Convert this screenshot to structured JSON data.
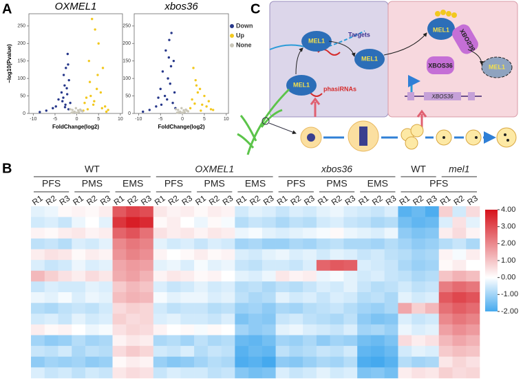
{
  "panels": [
    "A",
    "B",
    "C"
  ],
  "diagram": {
    "mel1": "MEL1",
    "targets": "Targets",
    "phasirnas": "phasiRNAs",
    "xbos36_protein": "XBOS36",
    "xbos36_gene": "XBOS36"
  },
  "chart_data": [
    {
      "type": "scatter",
      "title": "OXMEL1",
      "xlabel": "FoldChange(log2)",
      "ylabel": "−log10(Pvalue)",
      "xlim": [
        -11,
        10.5
      ],
      "ylim": [
        0,
        285
      ],
      "xticks": [
        -10,
        -5,
        0,
        5,
        10
      ],
      "yticks": [
        0,
        50,
        100,
        150,
        200,
        250
      ],
      "series": [
        {
          "name": "Down",
          "color": "#26378a",
          "x": [
            -2.1,
            -2.5,
            -3.0,
            -1.8,
            -2.8,
            -3.5,
            -4.2,
            -2.2,
            -1.5,
            -3.1,
            -2.6,
            -5.5,
            -7.0,
            -8.5,
            -4.8,
            -2.3,
            -1.9,
            -3.3,
            -2.0,
            -2.7
          ],
          "values": [
            170,
            130,
            110,
            95,
            80,
            60,
            40,
            55,
            30,
            45,
            25,
            15,
            8,
            4,
            20,
            72,
            12,
            35,
            140,
            18
          ]
        },
        {
          "name": "Up",
          "color": "#f2c81e",
          "x": [
            3.5,
            4.2,
            5.0,
            2.8,
            6.0,
            3.0,
            4.6,
            5.5,
            2.2,
            1.8,
            3.8,
            6.5,
            7.2,
            2.5,
            4.0,
            5.8,
            1.5,
            3.2,
            6.8,
            4.8
          ],
          "values": [
            270,
            240,
            200,
            150,
            130,
            90,
            70,
            60,
            45,
            30,
            25,
            20,
            10,
            12,
            35,
            15,
            8,
            50,
            5,
            110
          ]
        },
        {
          "name": "None",
          "color": "#c9c6b8",
          "x": [
            -1.0,
            -0.5,
            0,
            0.5,
            1.0,
            -1.5,
            1.3,
            -0.8,
            0.3,
            -0.2,
            0.8,
            -1.2
          ],
          "values": [
            10,
            5,
            2,
            4,
            8,
            12,
            6,
            3,
            9,
            15,
            11,
            2
          ]
        }
      ]
    },
    {
      "type": "scatter",
      "title": "xbos36",
      "xlabel": "FoldChange(log2)",
      "xlim": [
        -11,
        10.5
      ],
      "ylim": [
        0,
        285
      ],
      "xticks": [
        -10,
        -5,
        0,
        5,
        10
      ],
      "yticks": [
        0,
        50,
        100,
        150,
        200,
        250
      ],
      "series": [
        {
          "color": "#26378a",
          "x": [
            -2.5,
            -3.0,
            -3.8,
            -2.0,
            -4.5,
            -3.3,
            -2.8,
            -5.0,
            -1.8,
            -4.0,
            -3.5,
            -2.2,
            -6.0,
            -7.5,
            -9.0,
            -2.6,
            -3.1,
            -4.8,
            -1.6,
            -5.5
          ],
          "values": [
            230,
            210,
            180,
            150,
            120,
            100,
            85,
            70,
            60,
            50,
            40,
            30,
            20,
            10,
            5,
            135,
            160,
            25,
            15,
            45
          ]
        },
        {
          "color": "#f2c81e",
          "x": [
            2.5,
            3.0,
            4.0,
            5.0,
            6.0,
            3.5,
            2.2,
            4.5,
            5.5,
            7.0,
            1.8,
            3.2,
            2.8,
            6.5,
            4.2
          ],
          "values": [
            130,
            95,
            70,
            50,
            35,
            60,
            40,
            25,
            20,
            10,
            15,
            80,
            28,
            12,
            8
          ]
        },
        {
          "color": "#c9c6b8",
          "x": [
            -1.0,
            -0.5,
            0,
            0.5,
            1.0,
            -1.5,
            1.3,
            -0.8,
            0.3,
            -0.2,
            0.8,
            -1.2
          ],
          "values": [
            10,
            5,
            2,
            4,
            8,
            12,
            6,
            3,
            9,
            15,
            11,
            2
          ]
        }
      ]
    },
    {
      "type": "heatmap",
      "replicates": [
        "R1",
        "R2",
        "R3"
      ],
      "groups": [
        {
          "genotypes": [
            {
              "name": "WT"
            }
          ],
          "stages": [
            "PFS",
            "PMS",
            "EMS"
          ]
        },
        {
          "genotypes": [
            {
              "name": "OXMEL1",
              "italic": true
            }
          ],
          "stages": [
            "PFS",
            "PMS",
            "EMS"
          ]
        },
        {
          "genotypes": [
            {
              "name": "xbos36",
              "italic": true
            }
          ],
          "stages": [
            "PFS",
            "PMS",
            "EMS"
          ]
        },
        {
          "genotypes": [
            {
              "name": "WT"
            },
            {
              "name": "mel1",
              "italic": true
            }
          ],
          "stages": [
            "PFS"
          ]
        }
      ],
      "color_stops": [
        {
          "value": -2,
          "color": "#45a9ee"
        },
        {
          "value": 0,
          "color": "#ffffff"
        },
        {
          "value": 4,
          "color": "#d6121b"
        }
      ],
      "clim": [
        -2,
        4
      ],
      "cticks": [
        {
          "value": 4,
          "label": "4.00"
        },
        {
          "value": 3,
          "label": "3.00"
        },
        {
          "value": 2,
          "label": "2.00"
        },
        {
          "value": 1,
          "label": "1.00"
        },
        {
          "value": 0,
          "label": "0.00"
        },
        {
          "value": -1,
          "label": "-1.00"
        },
        {
          "value": -2,
          "label": "-2.00"
        }
      ],
      "values": [
        [
          -0.3,
          -0.2,
          0.1,
          0.2,
          0.1,
          0.3,
          2.8,
          3.2,
          3.0,
          0.4,
          0.2,
          0.3,
          0.1,
          0.3,
          0.2,
          -0.5,
          -0.3,
          -0.4,
          -0.6,
          -0.4,
          -0.5,
          -0.3,
          -0.2,
          -0.4,
          -0.5,
          -0.6,
          -0.4,
          -1.8,
          -1.6,
          -1.9,
          0.8,
          -0.5,
          0.6
        ],
        [
          -0.5,
          -0.4,
          -0.6,
          -0.2,
          0,
          -0.3,
          3.4,
          3.8,
          3.6,
          0.1,
          0.3,
          0,
          -0.2,
          0.1,
          -0.1,
          -0.8,
          -0.6,
          -0.7,
          -0.9,
          -0.7,
          -0.8,
          -0.5,
          -0.4,
          -0.6,
          -0.7,
          -0.9,
          -0.8,
          -1.5,
          -1.7,
          -1.6,
          -0.4,
          0.5,
          -0.3
        ],
        [
          0.2,
          0.1,
          0.3,
          0.4,
          0.2,
          0.3,
          2.6,
          2.9,
          2.4,
          0.5,
          0.3,
          0.4,
          0.2,
          0.4,
          0.3,
          -0.2,
          -0.1,
          -0.3,
          -0.4,
          -0.3,
          -0.2,
          -0.1,
          0.1,
          -0.2,
          -0.3,
          -0.4,
          -0.2,
          -1.2,
          -1.4,
          -1.3,
          0.3,
          0.6,
          0.2
        ],
        [
          -0.7,
          -0.6,
          -0.8,
          -0.4,
          -0.5,
          -0.3,
          2.0,
          2.3,
          2.1,
          -0.3,
          -0.5,
          -0.4,
          -0.6,
          -0.4,
          -0.5,
          -1.0,
          -0.9,
          -1.1,
          -1.1,
          -0.9,
          -1.0,
          -0.8,
          -0.7,
          -0.9,
          -0.9,
          -1.0,
          -0.8,
          -1.0,
          -1.2,
          -1.1,
          -0.8,
          -0.6,
          -0.9
        ],
        [
          0.3,
          0.5,
          0.4,
          0.1,
          0.3,
          0.2,
          1.8,
          2.1,
          1.9,
          0.2,
          0.0,
          0.1,
          0.3,
          0.1,
          0.2,
          -0.4,
          -0.5,
          -0.3,
          -0.2,
          -0.4,
          -0.3,
          -0.5,
          -0.3,
          -0.4,
          -0.6,
          -0.5,
          -0.7,
          -0.8,
          -1.0,
          -0.9,
          0.2,
          -0.1,
          0.3
        ],
        [
          -0.4,
          -0.6,
          -0.5,
          -0.2,
          -0.4,
          -0.3,
          1.5,
          1.7,
          1.6,
          -0.3,
          -0.2,
          -0.4,
          -0.1,
          -0.3,
          -0.2,
          -0.6,
          -0.7,
          -0.5,
          -0.5,
          -0.6,
          -0.4,
          2.6,
          2.8,
          2.7,
          -0.4,
          -0.5,
          -0.6,
          -0.9,
          -1.1,
          -1.0,
          0.1,
          0.3,
          0.0
        ],
        [
          1.2,
          0.8,
          0.5,
          0.3,
          0.6,
          0.4,
          1.4,
          1.6,
          1.3,
          0.2,
          0.4,
          0.3,
          0.1,
          0.2,
          0.0,
          -0.3,
          -0.4,
          -0.2,
          0.4,
          0.2,
          0.3,
          -0.2,
          -0.1,
          -0.3,
          -0.5,
          -0.4,
          -0.6,
          -0.7,
          -0.9,
          -0.8,
          1.0,
          1.3,
          1.1
        ],
        [
          -0.6,
          -0.4,
          -0.5,
          -0.5,
          -0.3,
          -0.4,
          0.9,
          1.2,
          1.0,
          -0.4,
          -0.6,
          -0.5,
          -0.3,
          -0.5,
          -0.4,
          -0.8,
          -0.7,
          -0.9,
          -0.7,
          -0.8,
          -0.6,
          -0.4,
          -0.5,
          -0.3,
          -0.6,
          -0.8,
          -0.7,
          -0.5,
          -0.7,
          -0.6,
          2.2,
          2.5,
          2.3
        ],
        [
          -0.2,
          -0.3,
          -0.1,
          -0.4,
          -0.2,
          -0.3,
          1.1,
          1.3,
          1.2,
          -0.1,
          -0.3,
          -0.2,
          -0.2,
          -0.4,
          -0.3,
          -0.7,
          -0.9,
          -0.8,
          -0.3,
          -0.5,
          -0.4,
          -0.6,
          -0.4,
          -0.5,
          -0.8,
          -0.7,
          -0.9,
          -0.3,
          -0.5,
          -0.4,
          2.8,
          3.1,
          2.9
        ],
        [
          -0.8,
          -0.9,
          -0.7,
          -0.6,
          -0.7,
          -0.5,
          0.6,
          0.8,
          0.7,
          -0.5,
          -0.7,
          -0.6,
          -0.6,
          -0.8,
          -0.7,
          -1.1,
          -1.0,
          -1.2,
          -0.9,
          -1.0,
          -0.8,
          -0.7,
          -0.6,
          -0.8,
          -1.0,
          -1.1,
          -0.9,
          1.5,
          0.8,
          1.2,
          2.4,
          2.7,
          2.5
        ],
        [
          -0.5,
          -0.4,
          -0.6,
          -0.3,
          -0.5,
          -0.4,
          0.8,
          0.6,
          0.7,
          -0.4,
          -0.3,
          -0.5,
          -0.5,
          -0.6,
          -0.4,
          -1.4,
          -1.2,
          -1.3,
          -0.6,
          -0.5,
          -0.7,
          -0.8,
          -0.9,
          -0.7,
          -1.2,
          -1.4,
          -1.3,
          -0.4,
          -0.6,
          -0.5,
          2.0,
          2.3,
          2.1
        ],
        [
          0.3,
          0.1,
          0.2,
          0.0,
          -0.2,
          -0.1,
          0.5,
          0.7,
          0.6,
          0.2,
          0.0,
          0.1,
          -0.1,
          0.1,
          0.0,
          -1.0,
          -1.2,
          -1.1,
          -0.3,
          -0.2,
          -0.4,
          -0.5,
          -0.6,
          -0.4,
          -1.0,
          -0.9,
          -1.1,
          -0.2,
          -0.4,
          -0.3,
          1.6,
          1.9,
          1.7
        ],
        [
          -1.0,
          -1.2,
          -1.1,
          -0.8,
          -1.0,
          -0.9,
          0.2,
          0.4,
          0.3,
          -0.9,
          -0.8,
          -1.0,
          -0.7,
          -0.9,
          -0.8,
          -1.6,
          -1.7,
          -1.5,
          -1.0,
          -1.1,
          -0.9,
          -1.2,
          -1.0,
          -1.1,
          -1.5,
          -1.6,
          -1.4,
          0.6,
          0.3,
          0.5,
          1.2,
          1.5,
          1.3
        ],
        [
          -0.6,
          -0.7,
          -0.5,
          -0.9,
          -0.7,
          -0.8,
          0.6,
          0.9,
          0.7,
          -0.5,
          -0.6,
          -0.4,
          -0.8,
          -0.6,
          -0.7,
          -1.8,
          -1.6,
          -1.7,
          -0.7,
          -0.9,
          -0.8,
          -0.6,
          -0.7,
          -0.5,
          -1.7,
          -1.8,
          -1.6,
          -0.5,
          -0.3,
          -0.4,
          0.9,
          1.1,
          1.0
        ],
        [
          -1.2,
          -1.0,
          -1.1,
          -1.0,
          -1.2,
          -1.1,
          0.1,
          0.3,
          0.2,
          -1.1,
          -1.3,
          -1.2,
          -1.0,
          -0.8,
          -0.9,
          -1.9,
          -1.8,
          -2.0,
          -1.2,
          -1.3,
          -1.1,
          -0.9,
          -1.0,
          -0.8,
          -1.9,
          -2.0,
          -1.8,
          -0.8,
          -1.0,
          -0.9,
          0.4,
          0.7,
          0.5
        ],
        [
          -0.4,
          -0.6,
          -0.5,
          -0.7,
          -0.5,
          -0.6,
          0.4,
          0.6,
          0.5,
          -0.6,
          -0.4,
          -0.5,
          -0.5,
          -0.7,
          -0.6,
          -1.3,
          -1.5,
          -1.4,
          -0.4,
          -0.6,
          -0.5,
          -0.3,
          -0.5,
          -0.4,
          -1.4,
          -1.3,
          -1.5,
          0.3,
          0.5,
          0.4,
          0.8,
          0.6,
          0.7
        ]
      ]
    }
  ]
}
